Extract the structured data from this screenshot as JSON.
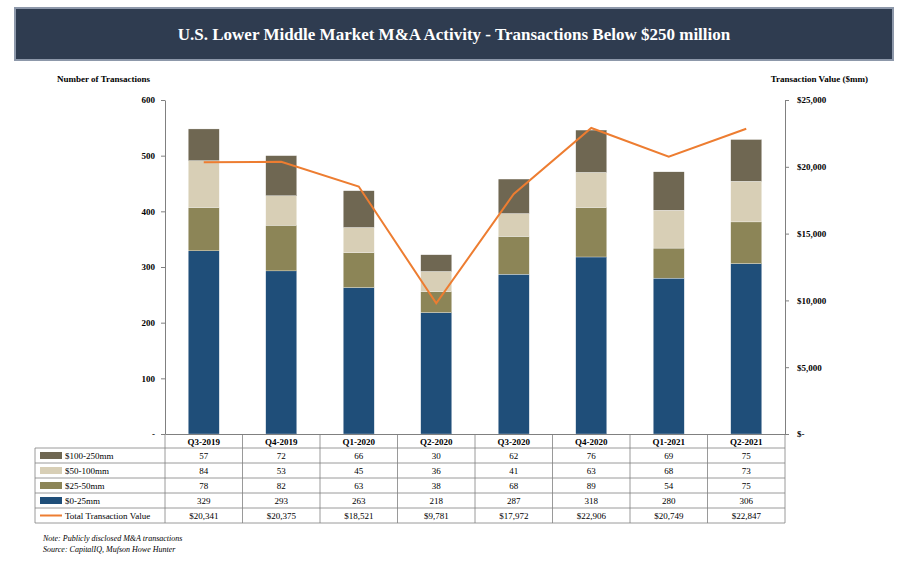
{
  "chart_data": {
    "type": "bar",
    "title": "U.S. Lower Middle Market M&A Activity - Transactions Below $250 million",
    "y_label": "Number of Transactions",
    "y2_label": "Transaction Value ($mm)",
    "categories": [
      "Q3-2019",
      "Q4-2019",
      "Q1-2020",
      "Q2-2020",
      "Q3-2020",
      "Q4-2020",
      "Q1-2021",
      "Q2-2021"
    ],
    "stacked": true,
    "grid": false,
    "series": [
      {
        "name": "$100-250mm",
        "color": "#6f6752",
        "values": [
          57,
          72,
          66,
          30,
          62,
          76,
          69,
          75
        ]
      },
      {
        "name": "$50-100mm",
        "color": "#d8cfb6",
        "values": [
          84,
          53,
          45,
          36,
          41,
          63,
          68,
          73
        ]
      },
      {
        "name": "$25-50mm",
        "color": "#8c8557",
        "values": [
          78,
          82,
          63,
          38,
          68,
          89,
          54,
          75
        ]
      },
      {
        "name": "$0-25mm",
        "color": "#1f4e79",
        "values": [
          329,
          293,
          263,
          218,
          287,
          318,
          280,
          306
        ]
      },
      {
        "name": "Total Transaction Value",
        "type": "line",
        "axis": "y2",
        "color": "#ed7d31",
        "values": [
          20341,
          20375,
          18521,
          9781,
          17972,
          22906,
          20749,
          22847
        ],
        "value_labels": [
          "$20,341",
          "$20,375",
          "$18,521",
          "$9,781",
          "$17,972",
          "$22,906",
          "$20,749",
          "$22,847"
        ]
      }
    ],
    "ylim": [
      0,
      600
    ],
    "yticks": [
      {
        "value": 0,
        "label": "-"
      },
      100,
      200,
      300,
      400,
      500,
      600
    ],
    "y2lim": [
      0,
      25000
    ],
    "y2ticks": [
      {
        "value": 0,
        "label": "$-"
      },
      {
        "value": 5000,
        "label": "$5,000"
      },
      {
        "value": 10000,
        "label": "$10,000"
      },
      {
        "value": 15000,
        "label": "$15,000"
      },
      {
        "value": 20000,
        "label": "$20,000"
      },
      {
        "value": 25000,
        "label": "$25,000"
      }
    ],
    "annotations": [
      "Note: Publicly disclosed M&A transactions",
      "Source: CapitalIQ, Mufson Howe Hunter"
    ]
  }
}
